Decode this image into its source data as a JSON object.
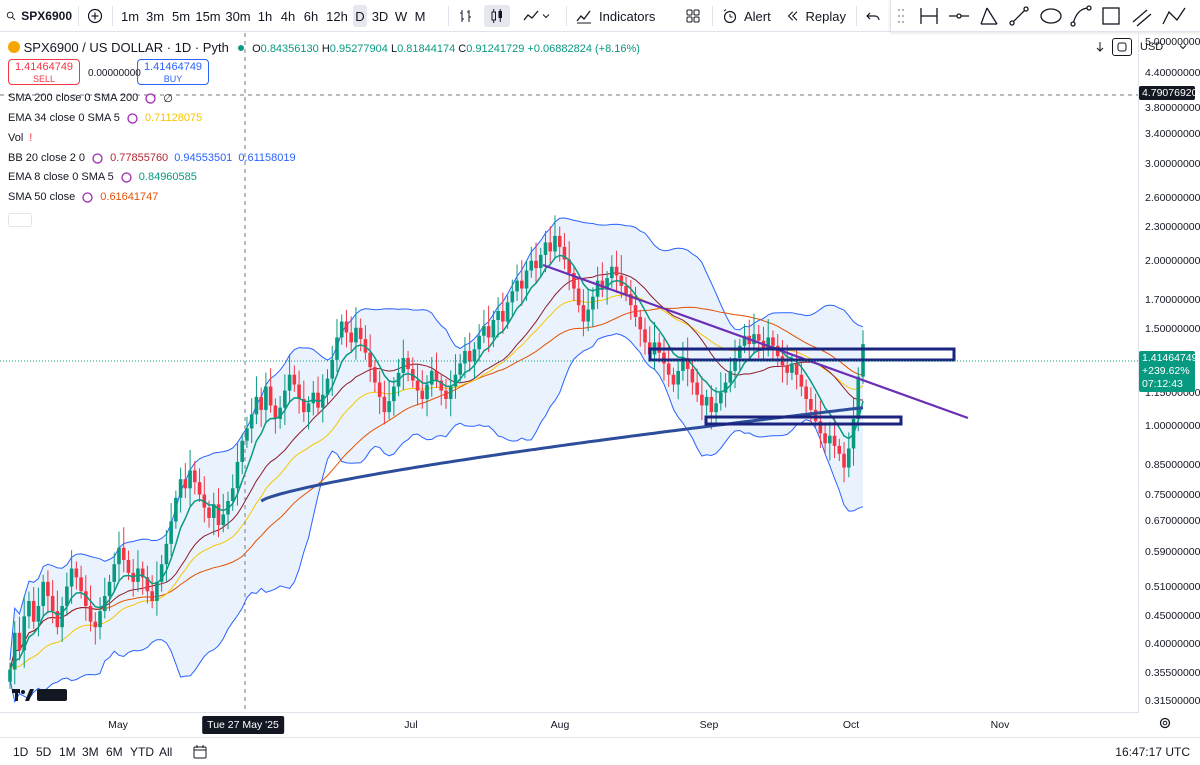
{
  "toolbar": {
    "symbol": "SPX6900",
    "intervals": [
      "1m",
      "3m",
      "5m",
      "15m",
      "30m",
      "1h",
      "4h",
      "6h",
      "12h",
      "D",
      "3D",
      "W",
      "M"
    ],
    "selected_interval": "D",
    "indicators_label": "Indicators",
    "alert_label": "Alert",
    "replay_label": "Replay"
  },
  "legend": {
    "title": "SPX6900 / US DOLLAR · 1D · Pyth",
    "open_label": "O",
    "open": "0.84356130",
    "high_label": "H",
    "high": "0.95277904",
    "low_label": "L",
    "low": "0.81844174",
    "close_label": "C",
    "close": "0.91241729",
    "change": "+0.06882824 (+8.16%)",
    "sell_price": "1.41464749",
    "sell_label": "SELL",
    "spread": "0.00000000",
    "buy_price": "1.41464749",
    "buy_label": "BUY",
    "indicators": [
      {
        "label": "SMA 200 close 0 SMA 200",
        "values": [
          "∅"
        ],
        "colors": [
          "#131722"
        ]
      },
      {
        "label": "EMA 34 close 0 SMA 5",
        "values": [
          "0.71128075"
        ],
        "colors": [
          "#f7c600"
        ]
      },
      {
        "label": "Vol",
        "values": [
          "!"
        ],
        "colors": [
          "#f23645"
        ]
      },
      {
        "label": "BB 20 close 2 0",
        "values": [
          "0.77855760",
          "0.94553501",
          "0.61158019"
        ],
        "colors": [
          "#b22833",
          "#2962ff",
          "#2962ff"
        ]
      },
      {
        "label": "EMA 8 close 0 SMA 5",
        "values": [
          "0.84960585"
        ],
        "colors": [
          "#089981"
        ]
      },
      {
        "label": "SMA 50 close",
        "values": [
          "0.61641747"
        ],
        "colors": [
          "#e65100"
        ]
      }
    ]
  },
  "currency": "USD",
  "price_axis": {
    "ticks": [
      "5.00000000",
      "4.40000000",
      "3.80000000",
      "3.40000000",
      "3.00000000",
      "2.60000000",
      "2.30000000",
      "2.00000000",
      "1.70000000",
      "1.50000000",
      "1.15000000",
      "1.00000000",
      "0.85000000",
      "0.75000000",
      "0.67000000",
      "0.59000000",
      "0.51000000",
      "0.45000000",
      "0.40000000",
      "0.35500000",
      "0.31500000"
    ],
    "crosshair_price": "4.79076920",
    "last_price": "1.41464749",
    "last_change": "+239.62%",
    "countdown": "07:12:43"
  },
  "time_axis": {
    "ticks": [
      "May",
      "Jul",
      "Aug",
      "Sep",
      "Oct",
      "Nov"
    ],
    "crosshair_date": "Tue 27 May '25"
  },
  "bottom": {
    "ranges": [
      "1D",
      "5D",
      "1M",
      "3M",
      "6M",
      "YTD",
      "All"
    ],
    "clock": "16:47:17 UTC"
  },
  "colors": {
    "up": "#089981",
    "down": "#f23645",
    "bb_band": "#2962ff",
    "bb_fill": "#e3effd",
    "sma200": "#2b4d9b",
    "ema34": "#f7c600",
    "ema8": "#089981",
    "sma50": "#e65100",
    "basis": "#8e1c2a",
    "trendline": "#6a2fb5",
    "zone": "#1a237e"
  },
  "chart_data": {
    "type": "candlestick",
    "symbol": "SPX6900 / US DOLLAR",
    "interval": "1D",
    "y_scale": "log",
    "ylim": [
      0.3,
      5.2
    ],
    "x_ticks": [
      "May",
      "Jul",
      "Aug",
      "Sep",
      "Oct",
      "Nov"
    ],
    "closes": [
      0.36,
      0.42,
      0.39,
      0.45,
      0.48,
      0.44,
      0.47,
      0.52,
      0.49,
      0.46,
      0.43,
      0.47,
      0.51,
      0.55,
      0.53,
      0.5,
      0.47,
      0.44,
      0.43,
      0.46,
      0.49,
      0.52,
      0.56,
      0.6,
      0.57,
      0.54,
      0.52,
      0.55,
      0.53,
      0.5,
      0.48,
      0.52,
      0.56,
      0.61,
      0.67,
      0.74,
      0.8,
      0.77,
      0.83,
      0.79,
      0.75,
      0.71,
      0.68,
      0.72,
      0.66,
      0.69,
      0.73,
      0.77,
      0.86,
      0.94,
      0.99,
      1.05,
      1.13,
      1.07,
      1.18,
      1.09,
      1.03,
      1.08,
      1.16,
      1.24,
      1.19,
      1.12,
      1.06,
      1.1,
      1.15,
      1.08,
      1.14,
      1.22,
      1.32,
      1.45,
      1.55,
      1.48,
      1.42,
      1.51,
      1.44,
      1.36,
      1.28,
      1.2,
      1.13,
      1.06,
      1.11,
      1.18,
      1.25,
      1.33,
      1.27,
      1.21,
      1.16,
      1.12,
      1.19,
      1.26,
      1.21,
      1.16,
      1.12,
      1.18,
      1.24,
      1.3,
      1.37,
      1.31,
      1.38,
      1.46,
      1.52,
      1.45,
      1.56,
      1.62,
      1.55,
      1.68,
      1.76,
      1.84,
      1.78,
      1.92,
      2.0,
      1.94,
      2.05,
      2.16,
      2.08,
      2.22,
      2.12,
      2.01,
      1.9,
      1.78,
      1.66,
      1.55,
      1.63,
      1.72,
      1.84,
      1.77,
      1.86,
      1.95,
      1.88,
      1.8,
      1.74,
      1.66,
      1.58,
      1.5,
      1.42,
      1.35,
      1.42,
      1.36,
      1.3,
      1.24,
      1.19,
      1.26,
      1.33,
      1.27,
      1.2,
      1.14,
      1.09,
      1.13,
      1.06,
      1.1,
      1.15,
      1.2,
      1.26,
      1.33,
      1.4,
      1.46,
      1.41,
      1.47,
      1.43,
      1.38,
      1.45,
      1.4,
      1.34,
      1.29,
      1.25,
      1.3,
      1.24,
      1.18,
      1.12,
      1.07,
      1.02,
      0.97,
      0.93,
      0.96,
      0.92,
      0.89,
      0.84,
      0.91,
      1.03,
      1.23,
      1.41
    ]
  }
}
